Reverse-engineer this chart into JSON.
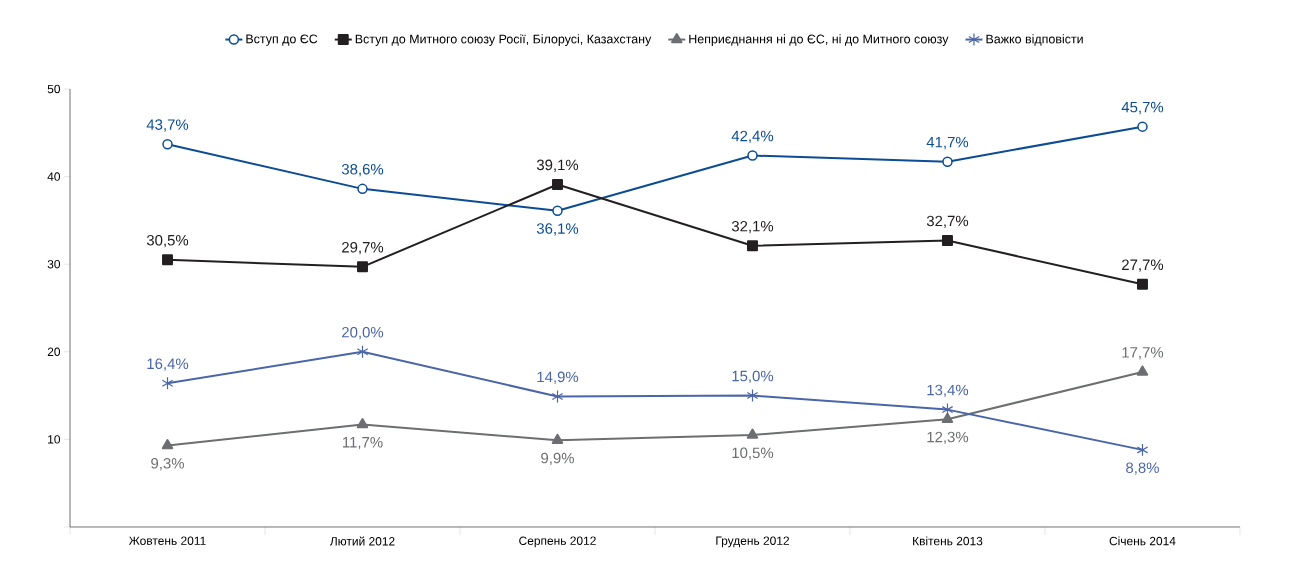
{
  "chart_data": {
    "type": "line",
    "categories": [
      "Жовтень 2011",
      "Лютий 2012",
      "Серпень 2012",
      "Грудень 2012",
      "Квітень 2013",
      "Січень 2014"
    ],
    "series": [
      {
        "name": "Вступ до ЄС",
        "color": "#0b4c94",
        "marker": "circle",
        "values": [
          43.7,
          38.6,
          36.1,
          42.4,
          41.7,
          45.7
        ],
        "value_labels": [
          "43,7%",
          "38,6%",
          "36,1%",
          "42,4%",
          "41,7%",
          "45,7%"
        ]
      },
      {
        "name": "Вступ до Митного союзу Росії, Білорусі, Казахстану",
        "color": "#231f20",
        "marker": "square",
        "values": [
          30.5,
          29.7,
          39.1,
          32.1,
          32.7,
          27.7
        ],
        "value_labels": [
          "30,5%",
          "29,7%",
          "39,1%",
          "32,1%",
          "32,7%",
          "27,7%"
        ]
      },
      {
        "name": "Неприєднання ні до ЄС, ні до Митного союзу",
        "color": "#6d6e71",
        "marker": "triangle",
        "values": [
          9.3,
          11.7,
          9.9,
          10.5,
          12.3,
          17.7
        ],
        "value_labels": [
          "9,3%",
          "11,7%",
          "9,9%",
          "10,5%",
          "12,3%",
          "17,7%"
        ]
      },
      {
        "name": "Важко відповісти",
        "color": "#4a65a8",
        "marker": "cross",
        "values": [
          16.4,
          20.0,
          14.9,
          15.0,
          13.4,
          8.8
        ],
        "value_labels": [
          "16,4%",
          "20,0%",
          "14,9%",
          "15,0%",
          "13,4%",
          "8,8%"
        ]
      }
    ],
    "ylim": [
      0,
      50
    ],
    "yticks": [
      {
        "value": 0,
        "label": null
      },
      10,
      20,
      30,
      40,
      50
    ],
    "legend": "top",
    "grid": false,
    "line_style": "solid"
  }
}
